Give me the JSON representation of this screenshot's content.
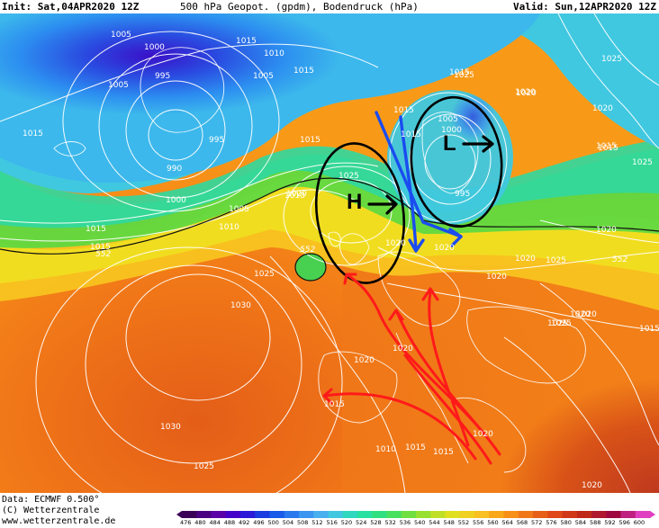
{
  "header": {
    "init": "Init: Sat,04APR2020 12Z",
    "title": "500 hPa Geopot. (gpdm), Bodendruck (hPa)",
    "valid": "Valid: Sun,12APR2020 12Z"
  },
  "footer": {
    "data_source": "Data: ECMWF  0.500°",
    "copyright": "(C) Wetterzentrale",
    "url": "www.wetterzentrale.de"
  },
  "map": {
    "pressure_labels": [
      "1005",
      "1000",
      "995",
      "990",
      "995",
      "1000",
      "1005",
      "1010",
      "1005",
      "1010",
      "1015",
      "1015",
      "1015",
      "1015",
      "1015",
      "1015",
      "1010",
      "1005",
      "1015",
      "1000",
      "1005",
      "995",
      "1025",
      "1020",
      "1020",
      "1015",
      "1020",
      "1020",
      "1025",
      "1020",
      "1020",
      "1025",
      "1025",
      "1030",
      "1030",
      "1025",
      "1020",
      "1020",
      "1020",
      "1015",
      "1010",
      "1015",
      "1020",
      "1020",
      "1020",
      "1025",
      "1015",
      "1020",
      "1025",
      "1025",
      "1015",
      "1020",
      "1020",
      "1015",
      "1020",
      "1025",
      "1015",
      "1015"
    ],
    "geopotential_labels": [
      "552",
      "552",
      "552"
    ],
    "high_symbol": "H",
    "low_symbol": "L"
  },
  "colorbar": {
    "ticks": [
      "476",
      "480",
      "484",
      "488",
      "492",
      "496",
      "500",
      "504",
      "508",
      "512",
      "516",
      "520",
      "524",
      "528",
      "532",
      "536",
      "540",
      "544",
      "548",
      "552",
      "556",
      "560",
      "564",
      "568",
      "572",
      "576",
      "580",
      "584",
      "588",
      "592",
      "596",
      "600"
    ],
    "colors": [
      "#3b0057",
      "#4a0080",
      "#5b00a8",
      "#4400c8",
      "#2a1ad8",
      "#1a3ce0",
      "#1a5ae8",
      "#2a78ee",
      "#3a96f0",
      "#48b0ee",
      "#40c8e0",
      "#30d8c0",
      "#28e0a0",
      "#30e080",
      "#48e060",
      "#70e040",
      "#98e030",
      "#c0e028",
      "#e0e020",
      "#f0d020",
      "#f8c020",
      "#f8a818",
      "#f89018",
      "#f07818",
      "#e86018",
      "#e04818",
      "#d03818",
      "#c02818",
      "#b01830",
      "#a00840",
      "#c02080",
      "#e040c0"
    ],
    "accent_arrow_red": "#ff1a1a",
    "accent_arrow_blue": "#1a4cf0"
  }
}
